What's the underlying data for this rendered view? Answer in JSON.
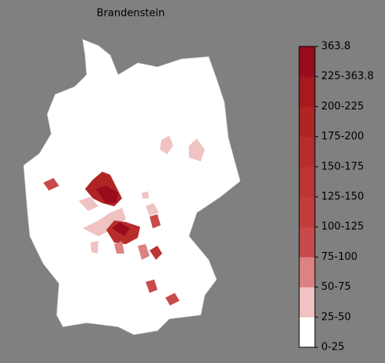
{
  "header": {
    "title": "Brandenstein"
  },
  "colorbar": {
    "labels": [
      "0-25",
      "25-50",
      "50-75",
      "75-100",
      "100-125",
      "125-150",
      "150-175",
      "175-200",
      "200-225",
      "225-363.8",
      "363.8"
    ],
    "colors": [
      "#ffffff",
      "#f0c2c2",
      "#dc8282",
      "#c84a4a",
      "#c23c3c",
      "#bd3434",
      "#b72c2c",
      "#b02424",
      "#a61a1e",
      "#980c1e"
    ]
  }
}
